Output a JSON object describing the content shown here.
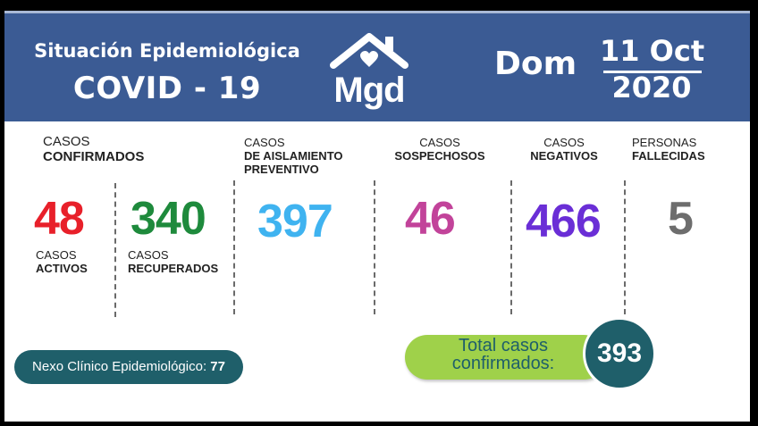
{
  "header": {
    "subtitle": "Situación Epidemiológica",
    "title": "COVID - 19",
    "logo_text": "Mgd",
    "day": "Dom",
    "date_top": "11 Oct",
    "date_bottom": "2020"
  },
  "stats": {
    "confirmados": {
      "label1": "CASOS",
      "label2": "CONFIRMADOS"
    },
    "activos": {
      "value": "48",
      "label1": "CASOS",
      "label2": "ACTIVOS",
      "color": "#e8202a"
    },
    "recuperados": {
      "value": "340",
      "label1": "CASOS",
      "label2": "RECUPERADOS",
      "color": "#1e8a3c"
    },
    "aislamiento": {
      "label1": "CASOS",
      "label2": "DE AISLAMIENTO",
      "label3": "PREVENTIVO",
      "value": "397",
      "color": "#3fb3f0"
    },
    "sospechosos": {
      "label1": "CASOS",
      "label2": "SOSPECHOSOS",
      "value": "46",
      "color": "#c2439a"
    },
    "negativos": {
      "label1": "CASOS",
      "label2": "NEGATIVOS",
      "value": "466",
      "color": "#6a2ed6"
    },
    "fallecidas": {
      "label1": "PERSONAS",
      "label2": "FALLECIDAS",
      "value": "5",
      "color": "#6d6d6d"
    }
  },
  "nexo": {
    "label": "Nexo Clínico Epidemiológico: ",
    "value": "77"
  },
  "total": {
    "line1": "Total casos",
    "line2": "confirmados:",
    "value": "393"
  },
  "colors": {
    "header_bg": "#3b5b94",
    "teal": "#1f5f6a",
    "lime": "#9fd14a"
  }
}
